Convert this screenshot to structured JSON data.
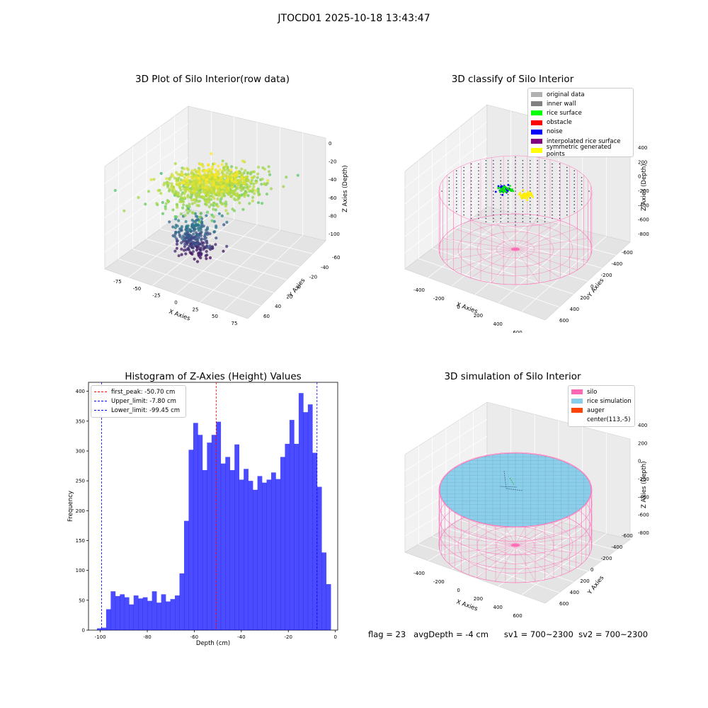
{
  "figure_title": "JTOCD01 2025-10-18 13:43:47",
  "status": {
    "flag": "flag = 23",
    "avg_depth": "avgDepth = -4 cm",
    "sv1": "sv1 = 700~2300",
    "sv2": "sv2 = 700~2300"
  },
  "chart_data": [
    {
      "type": "scatter",
      "projection": "3d",
      "title": "3D Plot of Silo Interior(row data)",
      "xlabel": "X Axies",
      "ylabel": "Y Axies",
      "zlabel": "Z Axies (Depth)",
      "x_ticks": [
        "-75",
        "-50",
        "-25",
        "0",
        "25",
        "50",
        "75"
      ],
      "y_ticks": [
        "-60",
        "-40",
        "-20",
        "0",
        "20",
        "40",
        "60"
      ],
      "z_ticks": [
        "0",
        "-20",
        "-40",
        "-60",
        "-80",
        "-100"
      ],
      "xlim": [
        -90,
        90
      ],
      "ylim": [
        -65,
        65
      ],
      "zlim": [
        -110,
        0
      ],
      "colormap": "viridis",
      "description_of_points": "dense cloud of lidar points; upper rice surface near -20 to -40 depth spanning roughly x -60..60, y -40..50; lower cone of points down to about -100 near x -20..20"
    },
    {
      "type": "scatter",
      "projection": "3d",
      "title": "3D classify of Silo Interior",
      "xlabel": "X Axies",
      "ylabel": "Y Axies",
      "zlabel": "Z Axies (Depth)",
      "x_ticks": [
        "-400",
        "-200",
        "0",
        "200",
        "400",
        "600"
      ],
      "y_ticks": [
        "-600",
        "-400",
        "-200",
        "0",
        "200",
        "400",
        "600"
      ],
      "z_ticks": [
        "400",
        "200",
        "0",
        "-200",
        "-400",
        "-600",
        "-800"
      ],
      "legend": [
        {
          "label": "original data",
          "color": "#b0b0b0"
        },
        {
          "label": "inner wall",
          "color": "#808080"
        },
        {
          "label": "rice surface",
          "color": "#00ff00"
        },
        {
          "label": "obstacle",
          "color": "#ff0000"
        },
        {
          "label": "noise",
          "color": "#0000ff"
        },
        {
          "label": "interpolated rice surface",
          "color": "#800080"
        },
        {
          "label": "symmetric generated points",
          "color": "#ffff00"
        }
      ]
    },
    {
      "type": "bar",
      "title": "Histogram of Z-Axies (Height) Values",
      "xlabel": "Depth (cm)",
      "ylabel": "Frequency",
      "xlim": [
        -105,
        1
      ],
      "ylim": [
        0,
        415
      ],
      "x_ticks": [
        -100,
        -80,
        -60,
        -40,
        -20,
        0
      ],
      "y_ticks": [
        0,
        50,
        100,
        150,
        200,
        250,
        300,
        350,
        400
      ],
      "bar_color": "#0000ff",
      "bin_width": 1.95,
      "bin_start": -101.4,
      "values": [
        3,
        4,
        35,
        65,
        57,
        60,
        55,
        43,
        58,
        53,
        55,
        49,
        65,
        46,
        60,
        48,
        52,
        58,
        95,
        183,
        302,
        347,
        327,
        268,
        314,
        327,
        349,
        279,
        290,
        268,
        311,
        252,
        270,
        250,
        235,
        258,
        247,
        252,
        264,
        253,
        290,
        312,
        352,
        312,
        397,
        365,
        378,
        297,
        240,
        130,
        77
      ],
      "reference_lines": [
        {
          "label": "first_peak: -50.70 cm",
          "x": -50.7,
          "color": "#ff0000"
        },
        {
          "label": "Upper_limit: -7.80 cm",
          "x": -7.8,
          "color": "#0000ff"
        },
        {
          "label": "Lower_limit: -99.45 cm",
          "x": -99.45,
          "color": "#0000ff"
        }
      ]
    },
    {
      "type": "surface",
      "projection": "3d",
      "title": "3D simulation of Silo Interior",
      "xlabel": "X Axies",
      "ylabel": "Y Axies",
      "zlabel": "Z Axies (Depth)",
      "x_ticks": [
        "-400",
        "-200",
        "0",
        "200",
        "400",
        "600"
      ],
      "y_ticks": [
        "-600",
        "-400",
        "-200",
        "0",
        "200",
        "400",
        "600"
      ],
      "z_ticks": [
        "400",
        "200",
        "0",
        "-200",
        "-400",
        "-600",
        "-800"
      ],
      "legend": [
        {
          "label": "silo",
          "color": "#ff69b4"
        },
        {
          "label": "rice simulation",
          "color": "#87ceeb"
        },
        {
          "label": "auger",
          "color": "#ff4500"
        },
        {
          "label": "center(113,-5)",
          "color": "#ffffff"
        }
      ]
    }
  ]
}
